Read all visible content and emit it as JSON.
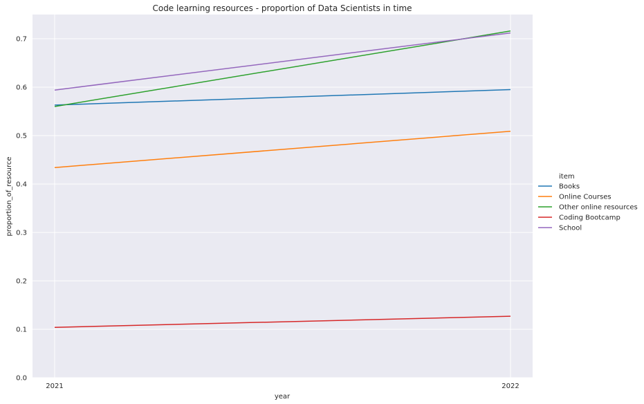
{
  "chart_data": {
    "type": "line",
    "title": "Code learning resources - proportion of Data Scientists in time",
    "xlabel": "year",
    "ylabel": "proportion_of_resource",
    "x": [
      2021,
      2022
    ],
    "x_tick_labels": [
      "2021",
      "2022"
    ],
    "ylim": [
      0.0,
      0.75
    ],
    "y_ticks": [
      0.0,
      0.1,
      0.2,
      0.3,
      0.4,
      0.5,
      0.6,
      0.7
    ],
    "y_tick_labels": [
      "0.0",
      "0.1",
      "0.2",
      "0.3",
      "0.4",
      "0.5",
      "0.6",
      "0.7"
    ],
    "grid": true,
    "legend_title": "item",
    "legend_position": "right",
    "series": [
      {
        "name": "Books",
        "color": "#1f77b4",
        "values": [
          0.563,
          0.595
        ]
      },
      {
        "name": "Online Courses",
        "color": "#ff7f0e",
        "values": [
          0.434,
          0.509
        ]
      },
      {
        "name": "Other online resources",
        "color": "#2ca02c",
        "values": [
          0.56,
          0.716
        ]
      },
      {
        "name": "Coding Bootcamp",
        "color": "#d62728",
        "values": [
          0.104,
          0.127
        ]
      },
      {
        "name": "School",
        "color": "#9467bd",
        "values": [
          0.594,
          0.712
        ]
      }
    ]
  }
}
